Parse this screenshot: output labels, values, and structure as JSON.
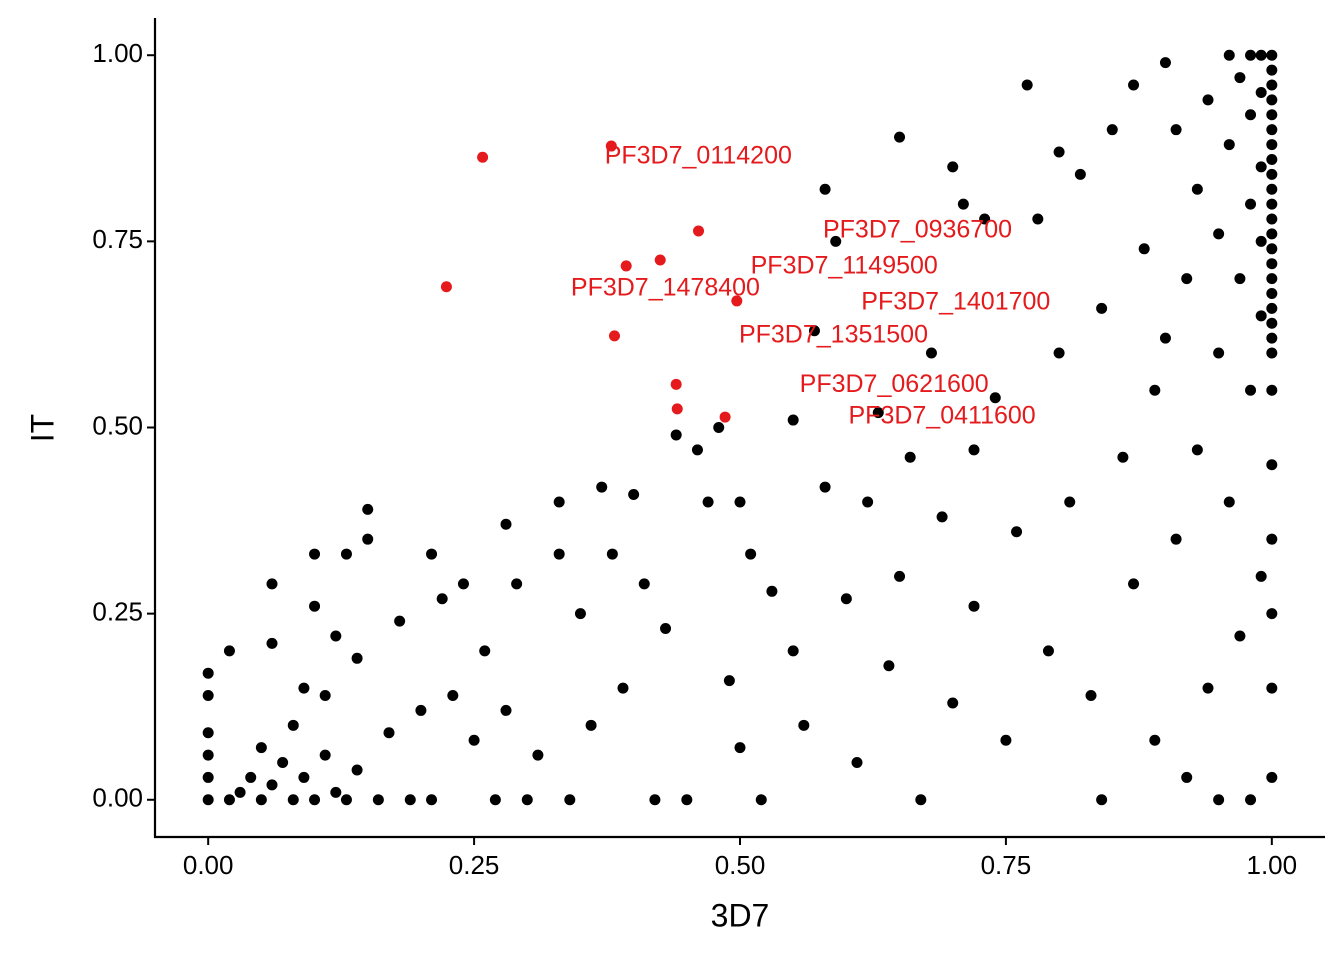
{
  "chart_data": {
    "type": "scatter",
    "x_label": "3D7",
    "y_label": "IT",
    "xlim": [
      -0.05,
      1.05
    ],
    "ylim": [
      -0.05,
      1.05
    ],
    "xticks": [
      {
        "value": 0,
        "label": "0.00"
      },
      {
        "value": 0.25,
        "label": "0.25"
      },
      {
        "value": 0.5,
        "label": "0.50"
      },
      {
        "value": 0.75,
        "label": "0.75"
      },
      {
        "value": 1,
        "label": "1.00"
      }
    ],
    "yticks": [
      {
        "value": 0,
        "label": "0.00"
      },
      {
        "value": 0.25,
        "label": "0.25"
      },
      {
        "value": 0.5,
        "label": "0.50"
      },
      {
        "value": 0.75,
        "label": "0.75"
      },
      {
        "value": 1,
        "label": "1.00"
      }
    ],
    "grid": false,
    "series": [
      {
        "color": "#000000",
        "x": [
          0,
          0,
          0,
          0,
          0,
          0,
          0.02,
          0.02,
          0.03,
          0.04,
          0.05,
          0.05,
          0.06,
          0.06,
          0.06,
          0.07,
          0.08,
          0.08,
          0.09,
          0.09,
          0.1,
          0.1,
          0.1,
          0.11,
          0.11,
          0.12,
          0.12,
          0.13,
          0.13,
          0.14,
          0.14,
          0.15,
          0.15,
          0.16,
          0.17,
          0.18,
          0.19,
          0.2,
          0.21,
          0.21,
          0.22,
          0.23,
          0.24,
          0.25,
          0.26,
          0.27,
          0.28,
          0.28,
          0.29,
          0.3,
          0.31,
          0.33,
          0.33,
          0.34,
          0.35,
          0.36,
          0.37,
          0.38,
          0.39,
          0.4,
          0.41,
          0.42,
          0.43,
          0.44,
          0.45,
          0.46,
          0.47,
          0.48,
          0.49,
          0.5,
          0.5,
          0.51,
          0.52,
          0.53,
          0.55,
          0.55,
          0.56,
          0.57,
          0.58,
          0.58,
          0.59,
          0.6,
          0.61,
          0.62,
          0.63,
          0.64,
          0.65,
          0.65,
          0.66,
          0.67,
          0.68,
          0.69,
          0.7,
          0.7,
          0.71,
          0.72,
          0.72,
          0.73,
          0.74,
          0.75,
          0.76,
          0.77,
          0.78,
          0.79,
          0.8,
          0.8,
          0.81,
          0.82,
          0.83,
          0.84,
          0.84,
          0.85,
          0.86,
          0.87,
          0.87,
          0.88,
          0.89,
          0.89,
          0.9,
          0.9,
          0.91,
          0.91,
          0.92,
          0.92,
          0.93,
          0.93,
          0.94,
          0.94,
          0.95,
          0.95,
          0.95,
          0.96,
          0.96,
          0.96,
          0.97,
          0.97,
          0.97,
          0.98,
          0.98,
          0.98,
          0.98,
          0.98,
          0.99,
          0.99,
          0.99,
          0.99,
          0.99,
          0.99,
          1,
          1,
          1,
          1,
          1,
          1,
          1,
          1,
          1,
          1,
          1,
          1,
          1,
          1,
          1,
          1,
          1,
          1,
          1,
          1,
          1,
          1,
          1,
          1,
          1,
          1,
          1
        ],
        "values": [
          0,
          0.03,
          0.06,
          0.09,
          0.14,
          0.17,
          0.2,
          0,
          0.01,
          0.03,
          0,
          0.07,
          0.02,
          0.21,
          0.29,
          0.05,
          0,
          0.1,
          0.03,
          0.15,
          0,
          0.26,
          0.33,
          0.06,
          0.14,
          0.01,
          0.22,
          0.33,
          0,
          0.04,
          0.19,
          0.39,
          0.35,
          0,
          0.09,
          0.24,
          0,
          0.12,
          0.33,
          0,
          0.27,
          0.14,
          0.29,
          0.08,
          0.2,
          0,
          0.37,
          0.12,
          0.29,
          0,
          0.06,
          0.4,
          0.33,
          0,
          0.25,
          0.1,
          0.42,
          0.33,
          0.15,
          0.41,
          0.29,
          0,
          0.23,
          0.49,
          0,
          0.47,
          0.4,
          0.5,
          0.16,
          0.4,
          0.07,
          0.33,
          0,
          0.28,
          0.51,
          0.2,
          0.1,
          0.63,
          0.82,
          0.42,
          0.75,
          0.27,
          0.05,
          0.4,
          0.52,
          0.18,
          0.89,
          0.3,
          0.46,
          0,
          0.6,
          0.38,
          0.13,
          0.85,
          0.8,
          0.47,
          0.26,
          0.78,
          0.54,
          0.08,
          0.36,
          0.96,
          0.78,
          0.2,
          0.6,
          0.87,
          0.4,
          0.84,
          0.14,
          0,
          0.66,
          0.9,
          0.46,
          0.96,
          0.29,
          0.74,
          0.55,
          0.08,
          0.99,
          0.62,
          0.35,
          0.9,
          0.7,
          0.03,
          0.82,
          0.47,
          0.94,
          0.15,
          0.76,
          0.6,
          0,
          1,
          0.88,
          0.4,
          0.97,
          0.7,
          0.22,
          1,
          0.92,
          0.8,
          0.55,
          0,
          1,
          0.95,
          0.85,
          0.75,
          0.65,
          0.3,
          1,
          0.98,
          0.96,
          0.94,
          0.92,
          0.9,
          0.88,
          0.86,
          0.84,
          0.82,
          0.8,
          0.78,
          0.76,
          0.74,
          0.72,
          0.7,
          0.68,
          0.66,
          0.64,
          0.62,
          0.6,
          0.55,
          0.45,
          0.35,
          0.25,
          0.15,
          0.03
        ]
      },
      {
        "color": "#e41a1c",
        "x": [
          0.258,
          0.379,
          0.461,
          0.393,
          0.425,
          0.224,
          0.497,
          0.382,
          0.44,
          0.441,
          0.486
        ],
        "values": [
          0.863,
          0.878,
          0.764,
          0.717,
          0.725,
          0.689,
          0.67,
          0.623,
          0.558,
          0.525,
          0.514
        ],
        "labels": [
          null,
          "PF3D7_0114200",
          "PF3D7_0936700",
          null,
          "PF3D7_1149500",
          "PF3D7_1478400",
          "PF3D7_1401700",
          "PF3D7_1351500",
          "PF3D7_0621600",
          null,
          "PF3D7_0411600"
        ]
      }
    ]
  }
}
